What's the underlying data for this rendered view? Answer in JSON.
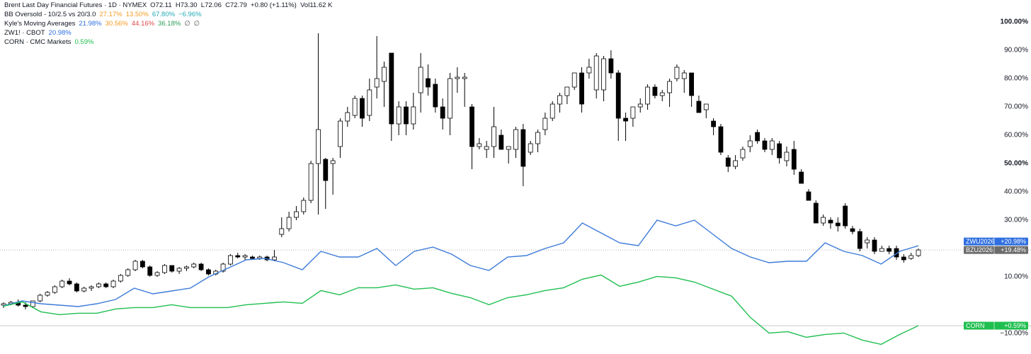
{
  "chart_data": {
    "type": "candlestick",
    "title": "Brent Last Day Financial Futures · 1D · NYMEX",
    "ohlc_text": "O72.11  H73.30  L72.06  C72.79  +0.80 (+1.11%)  Vol11.62 K",
    "indicators": [
      {
        "name": "BB Oversold - 10/2.5 vs 20/3.0",
        "values": [
          {
            "label": "27.17%",
            "color": "#f39c24"
          },
          {
            "label": "13.50%",
            "color": "#f39c24"
          },
          {
            "label": "67.80%",
            "color": "#22aab5"
          },
          {
            "label": "−6.96%",
            "color": "#22aab5"
          }
        ]
      },
      {
        "name": "Kyle's Moving Averages",
        "values": [
          {
            "label": "21.98%",
            "color": "#2f6fe0"
          },
          {
            "label": "30.56%",
            "color": "#f39c24"
          },
          {
            "label": "44.16%",
            "color": "#e04848"
          },
          {
            "label": "36.18%",
            "color": "#2f9e5a"
          },
          {
            "label": "∅",
            "color": "#555555"
          },
          {
            "label": "∅",
            "color": "#555555"
          }
        ]
      },
      {
        "name": "ZW1! · CBOT",
        "values": [
          {
            "label": "20.98%",
            "color": "#2f6fe0"
          }
        ]
      },
      {
        "name": "CORN · CMC Markets",
        "values": [
          {
            "label": "0.59%",
            "color": "#1fbf4f"
          }
        ]
      }
    ],
    "ylim": [
      -17.25,
      107.75
    ],
    "y2lim": [
      -9.4,
      115.6
    ],
    "yticks": [
      {
        "value": 100,
        "label": "100.00%",
        "bold": true
      },
      {
        "value": 90,
        "label": "90.00%"
      },
      {
        "value": 80,
        "label": "80.00%"
      },
      {
        "value": 70,
        "label": "70.00%"
      },
      {
        "value": 60,
        "label": "60.00%"
      },
      {
        "value": 50,
        "label": "50.00%",
        "bold": true
      },
      {
        "value": 40,
        "label": "40.00%"
      },
      {
        "value": 30,
        "label": "30.00%"
      },
      {
        "value": 10,
        "label": "10.00%"
      },
      {
        "value": -10,
        "label": "−10.00%"
      }
    ],
    "candles": {
      "name": "BZU2026",
      "tag_color": "#6b6b6b",
      "last_label": "+19.48%",
      "open": [
        0,
        0.5,
        1,
        0,
        -0.5,
        1.5,
        3.5,
        4.5,
        6.5,
        8.5,
        7.5,
        5,
        6,
        6.5,
        7.5,
        6.5,
        8.5,
        10.5,
        12.5,
        15.5,
        13.5,
        10.5,
        11.5,
        14,
        12,
        13,
        13.5,
        14.5,
        12.5,
        11,
        12,
        14.5,
        17.5,
        17,
        17,
        16.5,
        17,
        16,
        25,
        27,
        31,
        33,
        37,
        50,
        51.5,
        50,
        56,
        65,
        67,
        73,
        67,
        77,
        79,
        89,
        64,
        70,
        64,
        75,
        80,
        78,
        70,
        66,
        80,
        80,
        70,
        56,
        55,
        56,
        60,
        55,
        55,
        62,
        54,
        57,
        62,
        66,
        71,
        74,
        77,
        82,
        82,
        76,
        76,
        87,
        82,
        66,
        66,
        70,
        71,
        77,
        74,
        75,
        80,
        80,
        82,
        72,
        69,
        65,
        63,
        52,
        49,
        52,
        56,
        61,
        58,
        55,
        57,
        51,
        55,
        47,
        40,
        36,
        29,
        30,
        29,
        35,
        27,
        26,
        22,
        23,
        19,
        20,
        20,
        17,
        16.5,
        17.5
      ],
      "high": [
        1,
        1.5,
        2,
        1,
        1.5,
        4,
        5,
        7,
        9,
        9.5,
        8,
        6.5,
        7,
        8,
        8,
        9,
        11,
        13,
        16,
        16,
        14,
        12,
        14.5,
        14,
        13.5,
        14,
        15,
        15,
        13,
        12.5,
        15,
        18,
        18.5,
        18,
        17.5,
        17.5,
        17.5,
        19.5,
        31,
        33,
        35,
        38,
        51,
        96,
        52,
        52,
        66,
        70,
        74,
        74,
        80,
        95,
        86,
        89,
        72,
        72,
        75,
        89,
        85,
        80,
        73,
        82,
        84,
        82,
        71,
        59,
        58,
        70,
        62,
        56,
        63,
        64,
        58,
        62,
        68,
        72,
        75,
        77,
        82,
        84,
        87,
        89,
        88,
        90,
        83,
        68,
        70,
        73,
        78,
        78,
        76,
        80,
        85,
        83,
        82,
        74,
        71,
        66,
        64,
        53,
        53,
        56,
        60,
        62,
        59,
        59,
        58,
        56,
        58,
        48,
        41,
        37,
        32,
        31,
        31,
        36,
        28,
        27,
        24,
        24,
        21,
        21,
        21,
        18,
        18.5,
        20
      ],
      "low": [
        -1,
        0,
        -0.5,
        -1.5,
        -1,
        1,
        3,
        4,
        6,
        7,
        4.5,
        4.5,
        5,
        6,
        6,
        6,
        8,
        10,
        12,
        13,
        10,
        10,
        11,
        11.5,
        11,
        12,
        13,
        12,
        10.5,
        10.5,
        11.5,
        14,
        16.5,
        16,
        16,
        16,
        15.5,
        15.5,
        24,
        26,
        30,
        32,
        36,
        32,
        34,
        39,
        52,
        63,
        66,
        63,
        65,
        73,
        70,
        58,
        60,
        60,
        62,
        68,
        74,
        68,
        62,
        60,
        75,
        70,
        48,
        55,
        52,
        52,
        55,
        50,
        52,
        42,
        53,
        54,
        60,
        65,
        68,
        71,
        76,
        68,
        80,
        73,
        72,
        80,
        58,
        58,
        63,
        68,
        69,
        73,
        72,
        70,
        79,
        75,
        70,
        68,
        66,
        60,
        53,
        47,
        48,
        51,
        54,
        57,
        54,
        53,
        50,
        49,
        46,
        43,
        37,
        29,
        28,
        27,
        26,
        27,
        25,
        19,
        20,
        18,
        19,
        18,
        16,
        15,
        16,
        17
      ],
      "close": [
        0.5,
        1,
        0,
        -0.5,
        1.5,
        3.5,
        4.5,
        6.5,
        8.5,
        7.5,
        5,
        6,
        6.5,
        7.5,
        6.5,
        8.5,
        10.5,
        12.5,
        15.5,
        13.5,
        10.5,
        11.5,
        14,
        12,
        13,
        13.5,
        14.5,
        12.5,
        11,
        12,
        14.5,
        17.5,
        17,
        17.5,
        16.5,
        17,
        16,
        17,
        27,
        31,
        33,
        37,
        50,
        62,
        44,
        51,
        65,
        68,
        73,
        66,
        76,
        80,
        84,
        64,
        70,
        64,
        70,
        84,
        77,
        70,
        66,
        80,
        80.5,
        80.5,
        56,
        57,
        56,
        63,
        55,
        56,
        62,
        49,
        57,
        61,
        66,
        71,
        74,
        77,
        82,
        71,
        84,
        88,
        87,
        82,
        66,
        65,
        70,
        71,
        77,
        74,
        75,
        79,
        84,
        82,
        74,
        68,
        71,
        63,
        54,
        49,
        51,
        55,
        58,
        58,
        55,
        58,
        52,
        54,
        48,
        43,
        37,
        29,
        31,
        29,
        28,
        28,
        26,
        20,
        23,
        19,
        20,
        19,
        17,
        16,
        17.5,
        19.48
      ]
    },
    "series": [
      {
        "name": "ZWU2026",
        "color": "#3d7bd9",
        "last_label": "+20.98%",
        "values": [
          -0.2,
          1.5,
          0.5,
          0,
          -0.5,
          0.5,
          2,
          6,
          4,
          5,
          6,
          10,
          13,
          16,
          16.5,
          15,
          12.5,
          19,
          17,
          17,
          20,
          14,
          19,
          20.5,
          18,
          14,
          12.25,
          17,
          17.5,
          20,
          22,
          29,
          25.5,
          22,
          21,
          30,
          28,
          30,
          25,
          20,
          17,
          15,
          15.5,
          15.5,
          22,
          19,
          17.5,
          14.5,
          19,
          20.98
        ]
      },
      {
        "name": "CORN",
        "color": "#1fbf4f",
        "axis": "y2",
        "last_label": "+0.59%",
        "values": [
          7.5,
          9,
          5.5,
          4.5,
          5,
          5,
          6.5,
          7,
          7,
          8,
          7,
          7,
          7,
          8,
          8.5,
          9,
          8.5,
          13,
          11.5,
          14,
          14,
          15,
          13.5,
          14,
          12,
          10.5,
          8,
          10.5,
          11.5,
          13,
          14,
          17,
          18.5,
          14.5,
          16,
          18,
          17.5,
          16,
          13.5,
          11,
          3.5,
          -2,
          -1.5,
          -3.5,
          -2.5,
          -2,
          -4.5,
          -6,
          -2.5,
          0.59
        ]
      }
    ]
  }
}
